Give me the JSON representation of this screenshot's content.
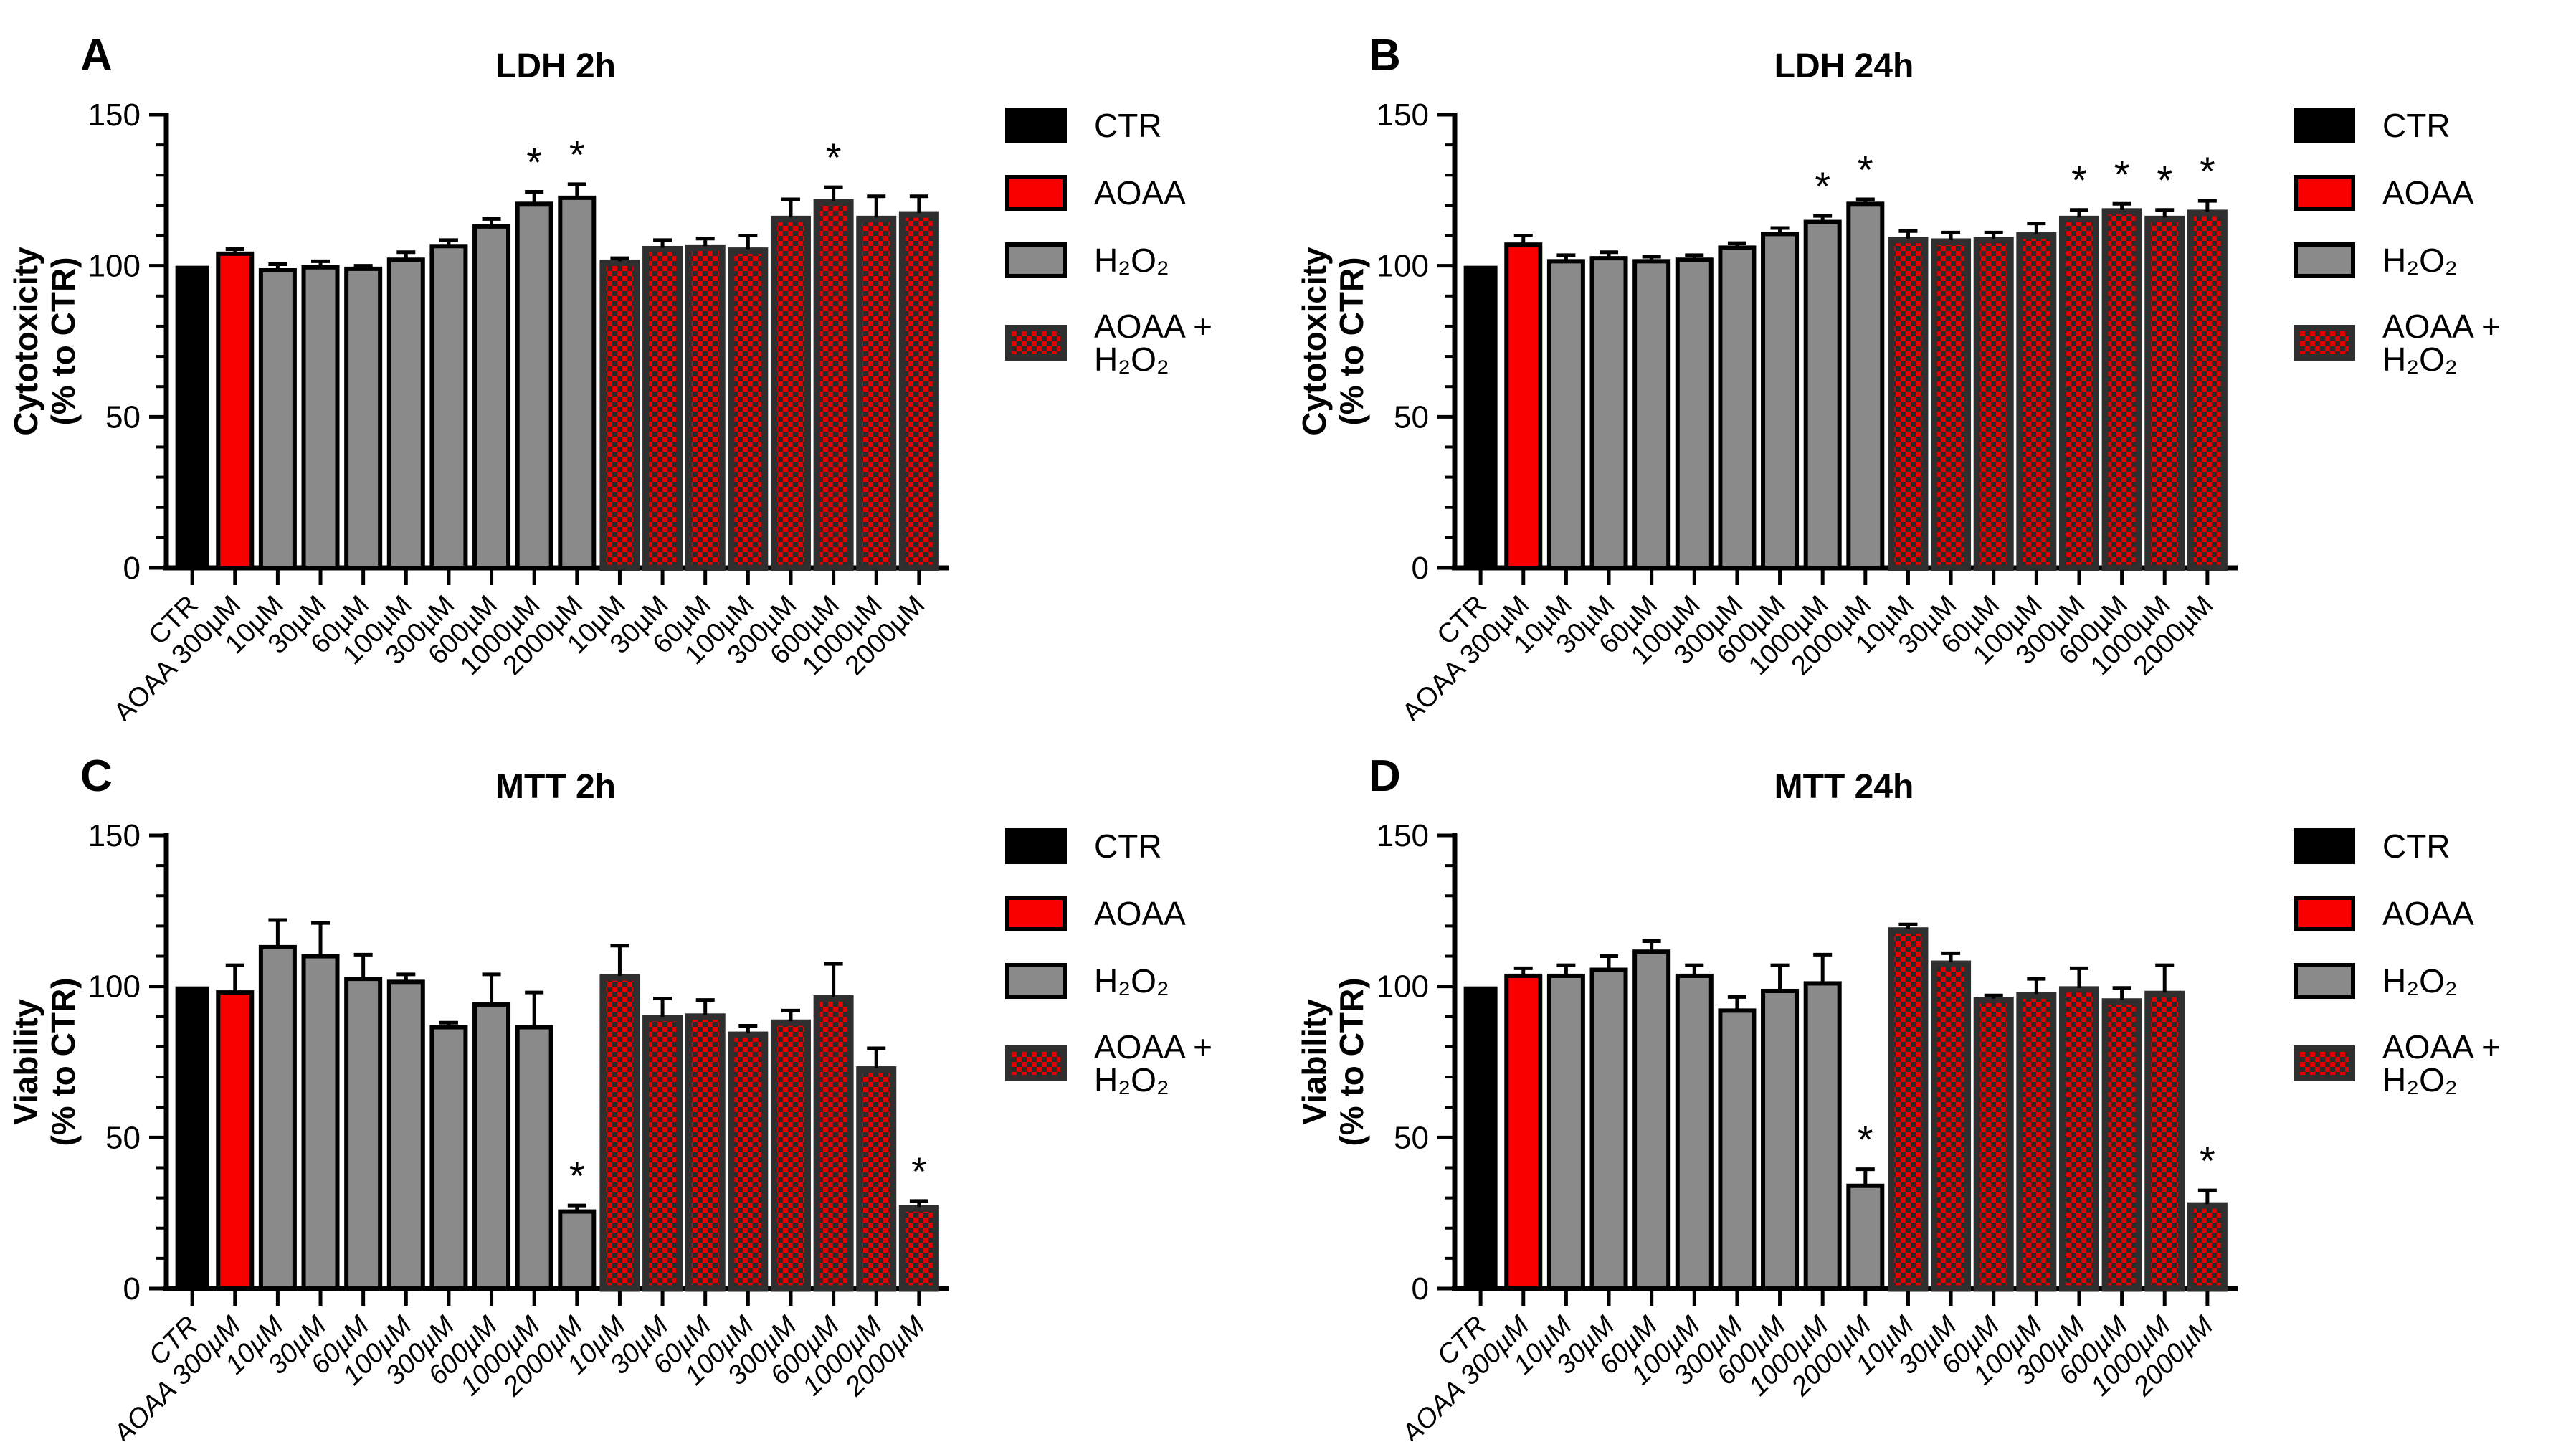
{
  "sig_symbol": "*",
  "colors": {
    "ctr": "#000000",
    "aoaa": "#f80000",
    "h2o2": "#8a8a8a",
    "checker_red": "#e30000",
    "checker_dark": "#2a2a2a",
    "checker_border": "#2f2f2f",
    "axis": "#000000"
  },
  "legend": {
    "items": [
      {
        "id": "ctr",
        "label": "CTR"
      },
      {
        "id": "aoaa",
        "label": "AOAA"
      },
      {
        "id": "h2o2",
        "label": "H₂O₂"
      },
      {
        "id": "aoaa_h2o2",
        "label": "AOAA + H₂O₂"
      }
    ]
  },
  "chart_data": [
    {
      "type": "bar",
      "panel": "A",
      "title": "LDH 2h",
      "ylabel": [
        "Cytotoxicity",
        "(% to CTR)"
      ],
      "ylim": [
        0,
        150
      ],
      "yticks": [
        0,
        50,
        100,
        150
      ],
      "minor_tick_step": 10,
      "grid": false,
      "legend_position": "right",
      "xlabel_italic": false,
      "categories": [
        "CTR",
        "AOAA 300µM",
        "10µM",
        "30µM",
        "60µM",
        "100µM",
        "300µM",
        "600µM",
        "1000µM",
        "2000µM",
        "10µM",
        "30µM",
        "60µM",
        "100µM",
        "300µM",
        "600µM",
        "1000µM",
        "2000µM"
      ],
      "groups": [
        "ctr",
        "aoaa",
        "h2o2",
        "h2o2",
        "h2o2",
        "h2o2",
        "h2o2",
        "h2o2",
        "h2o2",
        "h2o2",
        "aoaa_h2o2",
        "aoaa_h2o2",
        "aoaa_h2o2",
        "aoaa_h2o2",
        "aoaa_h2o2",
        "aoaa_h2o2",
        "aoaa_h2o2",
        "aoaa_h2o2"
      ],
      "values": [
        100,
        104,
        98.5,
        99.5,
        99,
        102,
        106.5,
        113,
        120.5,
        122.5,
        101,
        105.5,
        106,
        105,
        115.5,
        121,
        115.5,
        117
      ],
      "errors": [
        0,
        1.5,
        2,
        2,
        1,
        2.5,
        2,
        2.5,
        4,
        4.5,
        1.5,
        3,
        3,
        5,
        6.5,
        5,
        7.5,
        6
      ],
      "significant": [
        8,
        9,
        15
      ]
    },
    {
      "type": "bar",
      "panel": "B",
      "title": "LDH 24h",
      "ylabel": [
        "Cytotoxicity",
        "(% to CTR)"
      ],
      "ylim": [
        0,
        150
      ],
      "yticks": [
        0,
        50,
        100,
        150
      ],
      "minor_tick_step": 10,
      "grid": false,
      "legend_position": "right",
      "xlabel_italic": false,
      "categories": [
        "CTR",
        "AOAA 300µM",
        "10µM",
        "30µM",
        "60µM",
        "100µM",
        "300µM",
        "600µM",
        "1000µM",
        "2000µM",
        "10µM",
        "30µM",
        "60µM",
        "100µM",
        "300µM",
        "600µM",
        "1000µM",
        "2000µM"
      ],
      "groups": [
        "ctr",
        "aoaa",
        "h2o2",
        "h2o2",
        "h2o2",
        "h2o2",
        "h2o2",
        "h2o2",
        "h2o2",
        "h2o2",
        "aoaa_h2o2",
        "aoaa_h2o2",
        "aoaa_h2o2",
        "aoaa_h2o2",
        "aoaa_h2o2",
        "aoaa_h2o2",
        "aoaa_h2o2",
        "aoaa_h2o2"
      ],
      "values": [
        100,
        107,
        101.5,
        102.5,
        101.5,
        102,
        106,
        110.5,
        114.5,
        120.5,
        108.5,
        108,
        108.5,
        110,
        115.5,
        118,
        115.5,
        117.5
      ],
      "errors": [
        0,
        3,
        2,
        2,
        1.5,
        1.5,
        1.5,
        2,
        2,
        1.5,
        3,
        3,
        2.5,
        4,
        3,
        2.5,
        3,
        4
      ],
      "significant": [
        8,
        9,
        14,
        15,
        16,
        17
      ]
    },
    {
      "type": "bar",
      "panel": "C",
      "title": "MTT 2h",
      "ylabel": [
        "Viability",
        "(% to CTR)"
      ],
      "ylim": [
        0,
        150
      ],
      "yticks": [
        0,
        50,
        100,
        150
      ],
      "minor_tick_step": 10,
      "grid": false,
      "legend_position": "right",
      "xlabel_italic": true,
      "categories": [
        "CTR",
        "AOAA 300µM",
        "10µM",
        "30µM",
        "60µM",
        "100µM",
        "300µM",
        "600µM",
        "1000µM",
        "2000µM",
        "10µM",
        "30µM",
        "60µM",
        "100µM",
        "300µM",
        "600µM",
        "1000µM",
        "2000µM"
      ],
      "groups": [
        "ctr",
        "aoaa",
        "h2o2",
        "h2o2",
        "h2o2",
        "h2o2",
        "h2o2",
        "h2o2",
        "h2o2",
        "h2o2",
        "aoaa_h2o2",
        "aoaa_h2o2",
        "aoaa_h2o2",
        "aoaa_h2o2",
        "aoaa_h2o2",
        "aoaa_h2o2",
        "aoaa_h2o2",
        "aoaa_h2o2"
      ],
      "values": [
        100,
        98,
        113,
        110,
        102.5,
        101.5,
        86.5,
        94,
        86.5,
        25.5,
        103,
        89.5,
        90,
        84,
        88,
        96,
        72.5,
        26.5
      ],
      "errors": [
        0,
        9,
        9,
        11,
        8,
        2.5,
        1.5,
        10,
        11.5,
        2,
        10.5,
        6.5,
        5.5,
        3,
        4,
        11.5,
        7,
        2.5
      ],
      "significant": [
        9,
        17
      ]
    },
    {
      "type": "bar",
      "panel": "D",
      "title": "MTT 24h",
      "ylabel": [
        "Viability",
        "(% to CTR)"
      ],
      "ylim": [
        0,
        150
      ],
      "yticks": [
        0,
        50,
        100,
        150
      ],
      "minor_tick_step": 10,
      "grid": false,
      "legend_position": "right",
      "xlabel_italic": true,
      "categories": [
        "CTR",
        "AOAA 300µM",
        "10µM",
        "30µM",
        "60µM",
        "100µM",
        "300µM",
        "600µM",
        "1000µM",
        "2000µM",
        "10µM",
        "30µM",
        "60µM",
        "100µM",
        "300µM",
        "600µM",
        "1000µM",
        "2000µM"
      ],
      "groups": [
        "ctr",
        "aoaa",
        "h2o2",
        "h2o2",
        "h2o2",
        "h2o2",
        "h2o2",
        "h2o2",
        "h2o2",
        "h2o2",
        "aoaa_h2o2",
        "aoaa_h2o2",
        "aoaa_h2o2",
        "aoaa_h2o2",
        "aoaa_h2o2",
        "aoaa_h2o2",
        "aoaa_h2o2",
        "aoaa_h2o2"
      ],
      "values": [
        100,
        103.5,
        103.5,
        105.5,
        111.5,
        103.5,
        92,
        98.5,
        101,
        34,
        118.5,
        107.5,
        95.5,
        97,
        99,
        95,
        97.5,
        27.5
      ],
      "errors": [
        0,
        2.5,
        3.5,
        4.5,
        3.5,
        3.5,
        4.5,
        8.5,
        9.5,
        5.5,
        2,
        3.5,
        1.5,
        5.5,
        7,
        4.5,
        9.5,
        5
      ],
      "significant": [
        9,
        17
      ]
    }
  ]
}
